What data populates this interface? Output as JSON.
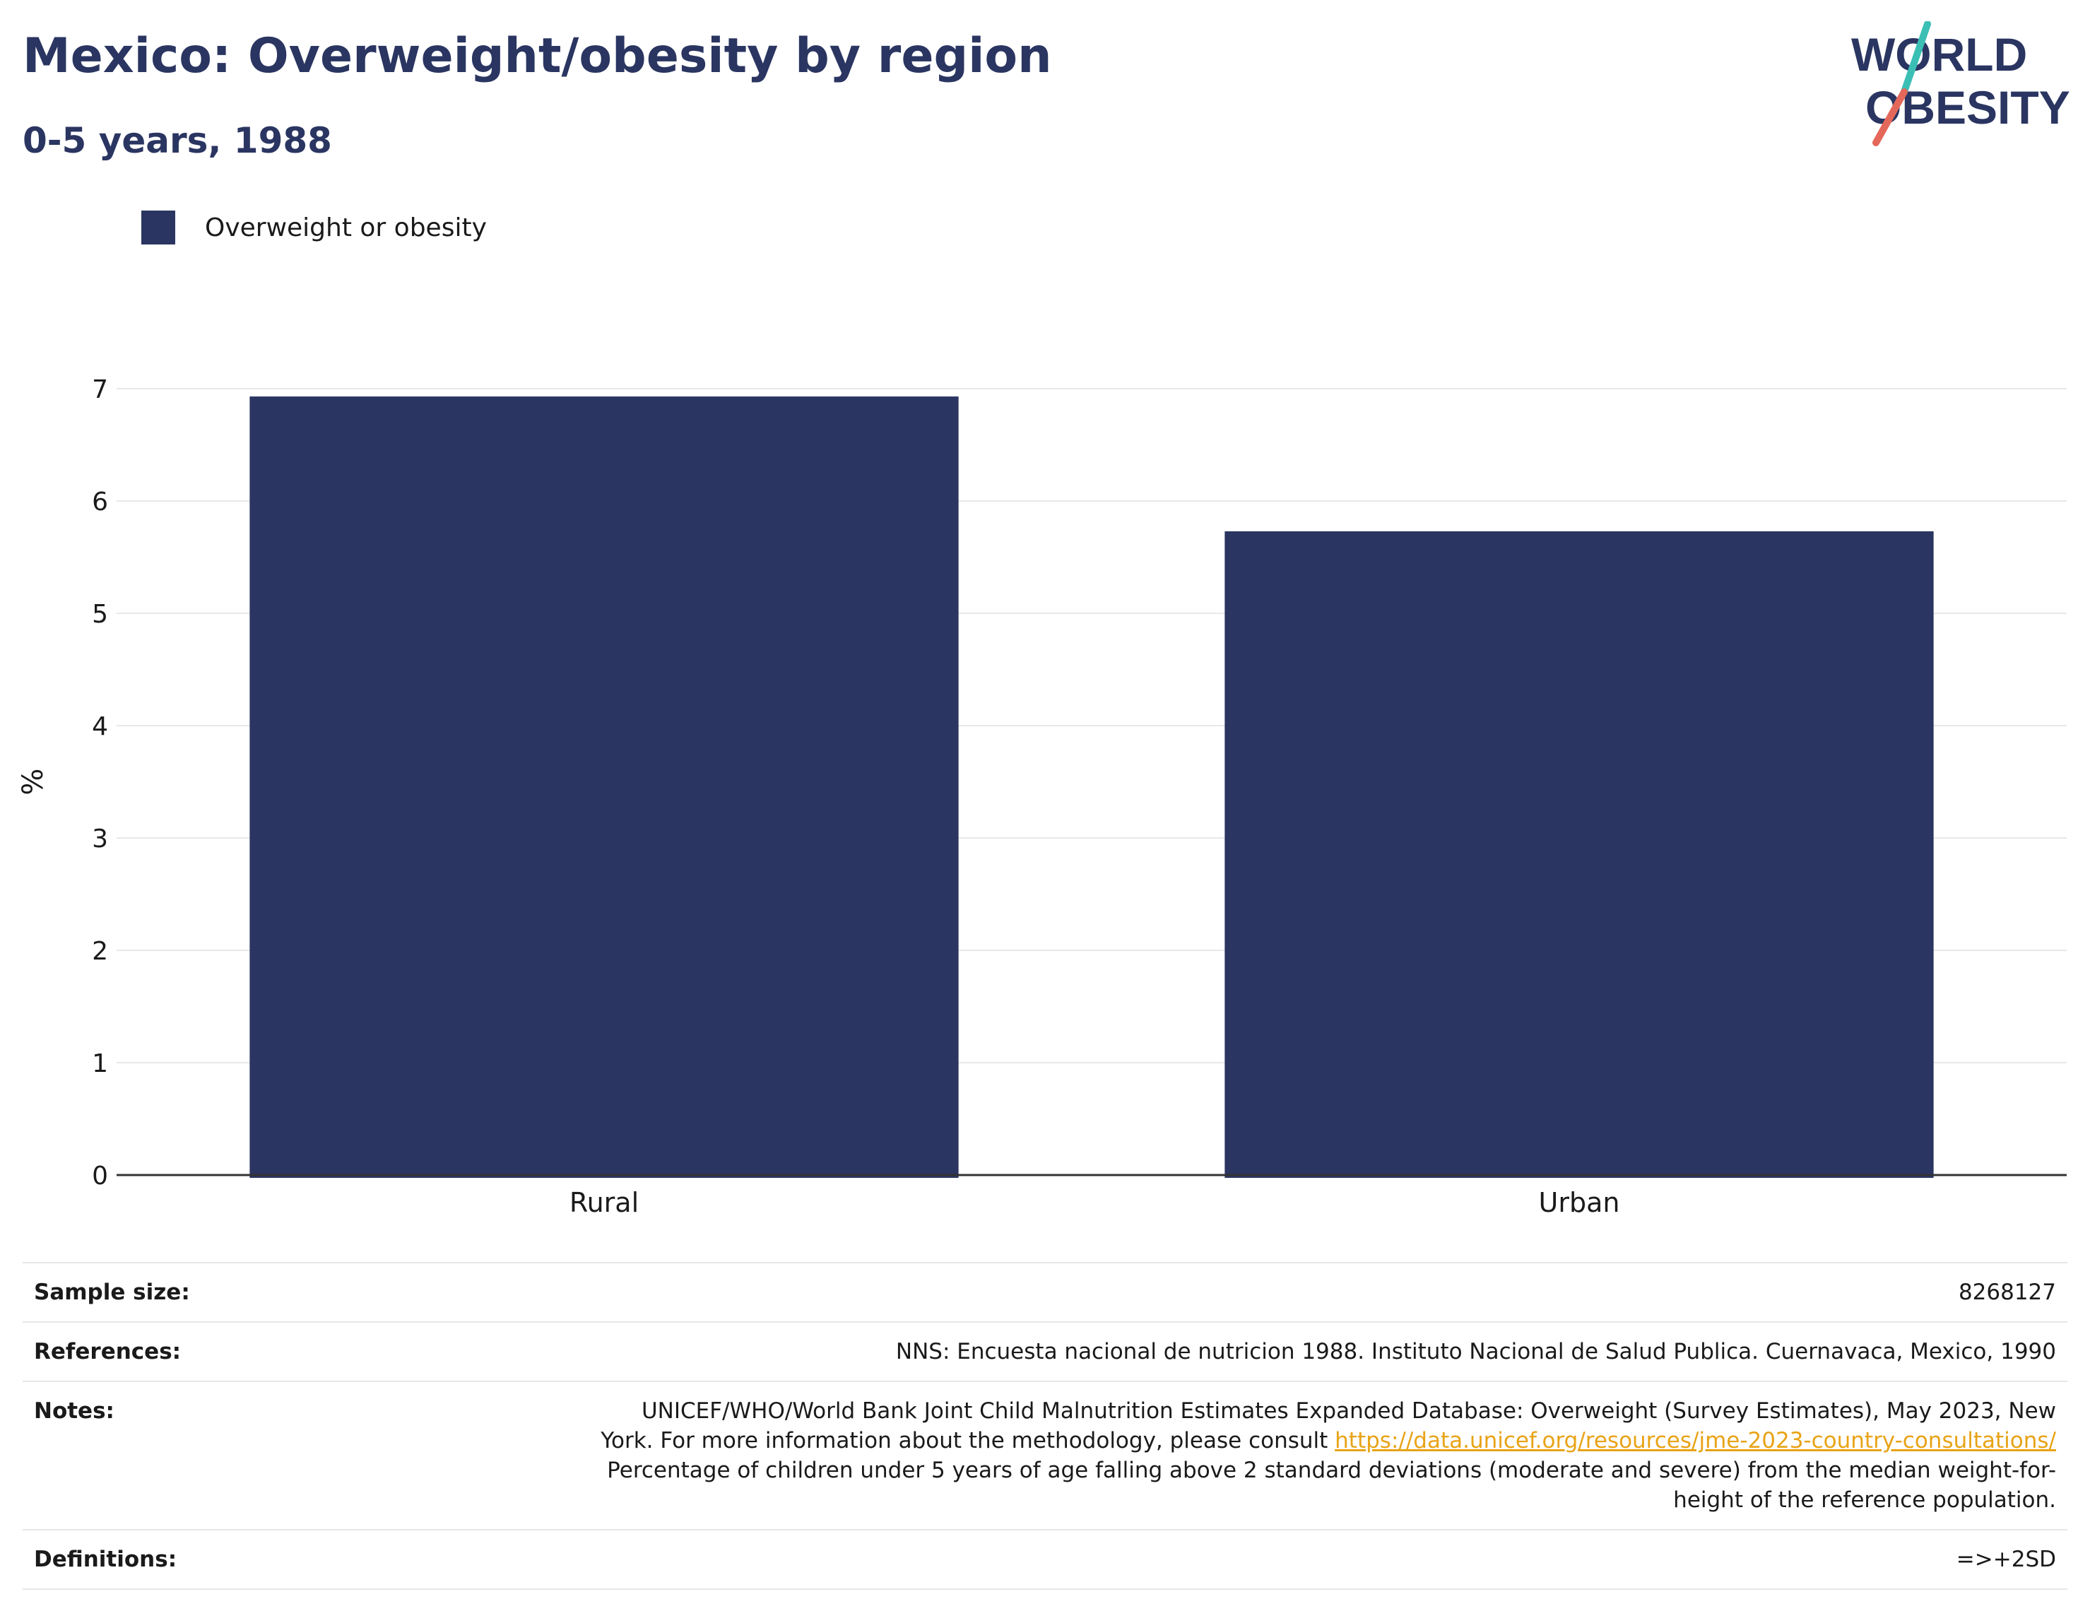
{
  "title": "Mexico: Overweight/obesity by region",
  "subtitle": "0-5 years, 1988",
  "logo": {
    "line1": "WORLD",
    "line2": "OBESITY",
    "text_color": "#2a3561",
    "accent_teal": "#3bbfb5",
    "accent_red": "#e4685a"
  },
  "legend": {
    "label": "Overweight or obesity",
    "color": "#2a3561"
  },
  "chart_data": {
    "type": "bar",
    "categories": [
      "Rural",
      "Urban"
    ],
    "series": [
      {
        "name": "Overweight or obesity",
        "values": [
          6.93,
          5.73
        ]
      }
    ],
    "ylabel": "%",
    "ylim": [
      0,
      7
    ],
    "yticks": [
      0,
      1,
      2,
      3,
      4,
      5,
      6,
      7
    ],
    "grid": true,
    "legend_position": "top-left",
    "bar_color": "#2a3561"
  },
  "meta": {
    "sample_size": {
      "label": "Sample size:",
      "value": "8268127"
    },
    "references": {
      "label": "References:",
      "value": "NNS: Encuesta nacional de nutricion 1988. Instituto Nacional de Salud Publica. Cuernavaca, Mexico, 1990"
    },
    "notes": {
      "label": "Notes:",
      "line1": "UNICEF/WHO/World Bank Joint Child Malnutrition Estimates Expanded Database: Overweight (Survey Estimates), May 2023, New",
      "line2_prefix": "York. For more information about the methodology, please consult ",
      "link": "https://data.unicef.org/resources/jme-2023-country-consultations/",
      "line3": "Percentage of children under 5 years of age falling above 2 standard deviations (moderate and severe) from the median weight-for-",
      "line4": "height of the reference population."
    },
    "definitions": {
      "label": "Definitions:",
      "value": "=>+2SD"
    }
  }
}
